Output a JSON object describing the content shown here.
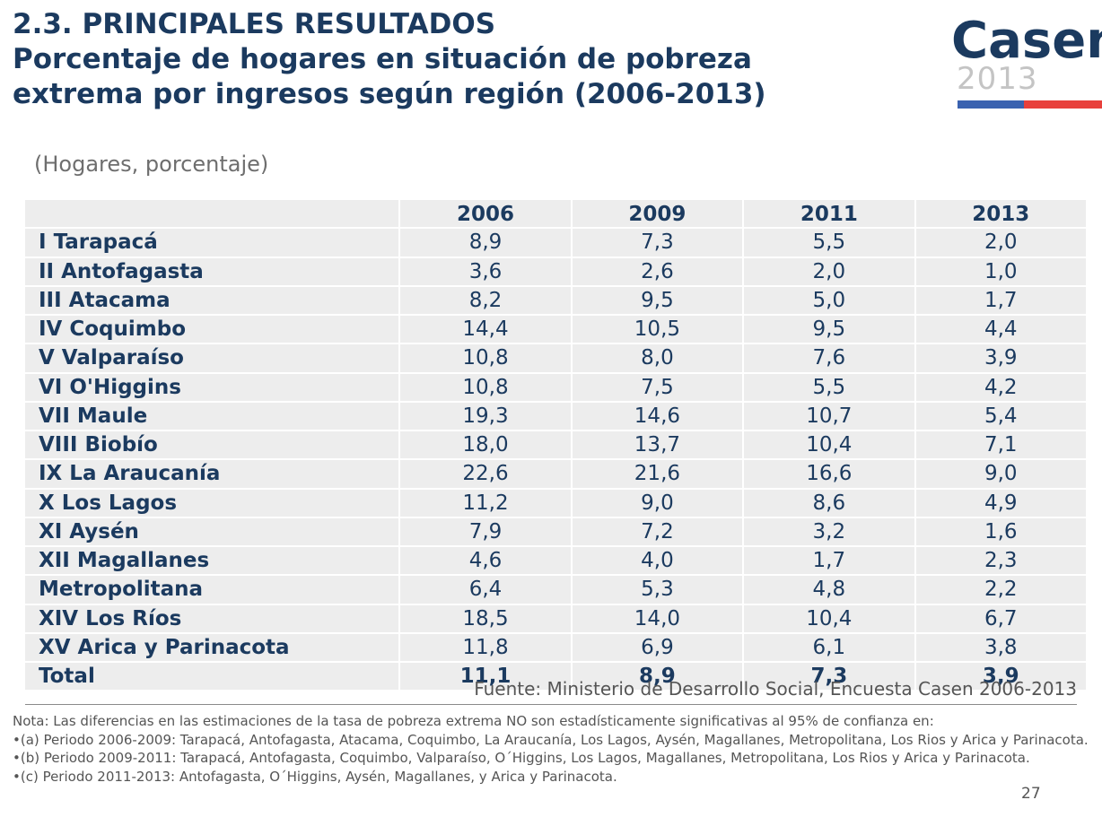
{
  "header": {
    "title_line1": "2.3. PRINCIPALES RESULTADOS",
    "title_line2": "Porcentaje de hogares en situación de pobreza",
    "title_line3": "extrema por ingresos según región (2006-2013)",
    "subtitle": "(Hogares, porcentaje)"
  },
  "logo": {
    "word": "Casen",
    "year": "2013",
    "colors": {
      "word": "#1b3a5f",
      "year": "#c4c4c4",
      "bar_left": "#3a62b0",
      "bar_right": "#e8403c"
    }
  },
  "chart_data": {
    "type": "table",
    "columns": [
      "",
      "2006",
      "2009",
      "2011",
      "2013"
    ],
    "rows": [
      [
        "I Tarapacá",
        "8,9",
        "7,3",
        "5,5",
        "2,0"
      ],
      [
        "II Antofagasta",
        "3,6",
        "2,6",
        "2,0",
        "1,0"
      ],
      [
        "III Atacama",
        "8,2",
        "9,5",
        "5,0",
        "1,7"
      ],
      [
        "IV Coquimbo",
        "14,4",
        "10,5",
        "9,5",
        "4,4"
      ],
      [
        "V Valparaíso",
        "10,8",
        "8,0",
        "7,6",
        "3,9"
      ],
      [
        "VI O'Higgins",
        "10,8",
        "7,5",
        "5,5",
        "4,2"
      ],
      [
        "VII Maule",
        "19,3",
        "14,6",
        "10,7",
        "5,4"
      ],
      [
        "VIII Biobío",
        "18,0",
        "13,7",
        "10,4",
        "7,1"
      ],
      [
        "IX La Araucanía",
        "22,6",
        "21,6",
        "16,6",
        "9,0"
      ],
      [
        "X Los Lagos",
        "11,2",
        "9,0",
        "8,6",
        "4,9"
      ],
      [
        "XI Aysén",
        "7,9",
        "7,2",
        "3,2",
        "1,6"
      ],
      [
        "XII Magallanes",
        "4,6",
        "4,0",
        "1,7",
        "2,3"
      ],
      [
        "Metropolitana",
        "6,4",
        "5,3",
        "4,8",
        "2,2"
      ],
      [
        "XIV Los Ríos",
        "18,5",
        "14,0",
        "10,4",
        "6,7"
      ],
      [
        "XV Arica y Parinacota",
        "11,8",
        "6,9",
        "6,1",
        "3,8"
      ]
    ],
    "total": [
      "Total",
      "11,1",
      "8,9",
      "7,3",
      "3,9"
    ],
    "colors": {
      "text": "#1b3a5f",
      "cell_background": "#ededed"
    }
  },
  "footer": {
    "source": "Fuente: Ministerio de Desarrollo Social, Encuesta Casen 2006-2013",
    "notes": [
      "Nota: Las diferencias en las estimaciones de  la tasa de pobreza extrema NO son estadísticamente significativas al 95% de confianza en:",
      "•(a) Periodo 2006-2009: Tarapacá, Antofagasta, Atacama, Coquimbo, La Araucanía, Los Lagos, Aysén, Magallanes, Metropolitana, Los Rios y Arica y Parinacota.",
      "•(b) Periodo 2009-2011: Tarapacá, Antofagasta, Coquimbo, Valparaíso, O´Higgins, Los Lagos, Magallanes, Metropolitana, Los Rios y Arica y Parinacota.",
      "•(c) Periodo 2011-2013: Antofagasta, O´Higgins, Aysén, Magallanes, y Arica y Parinacota."
    ],
    "page_number": "27"
  }
}
